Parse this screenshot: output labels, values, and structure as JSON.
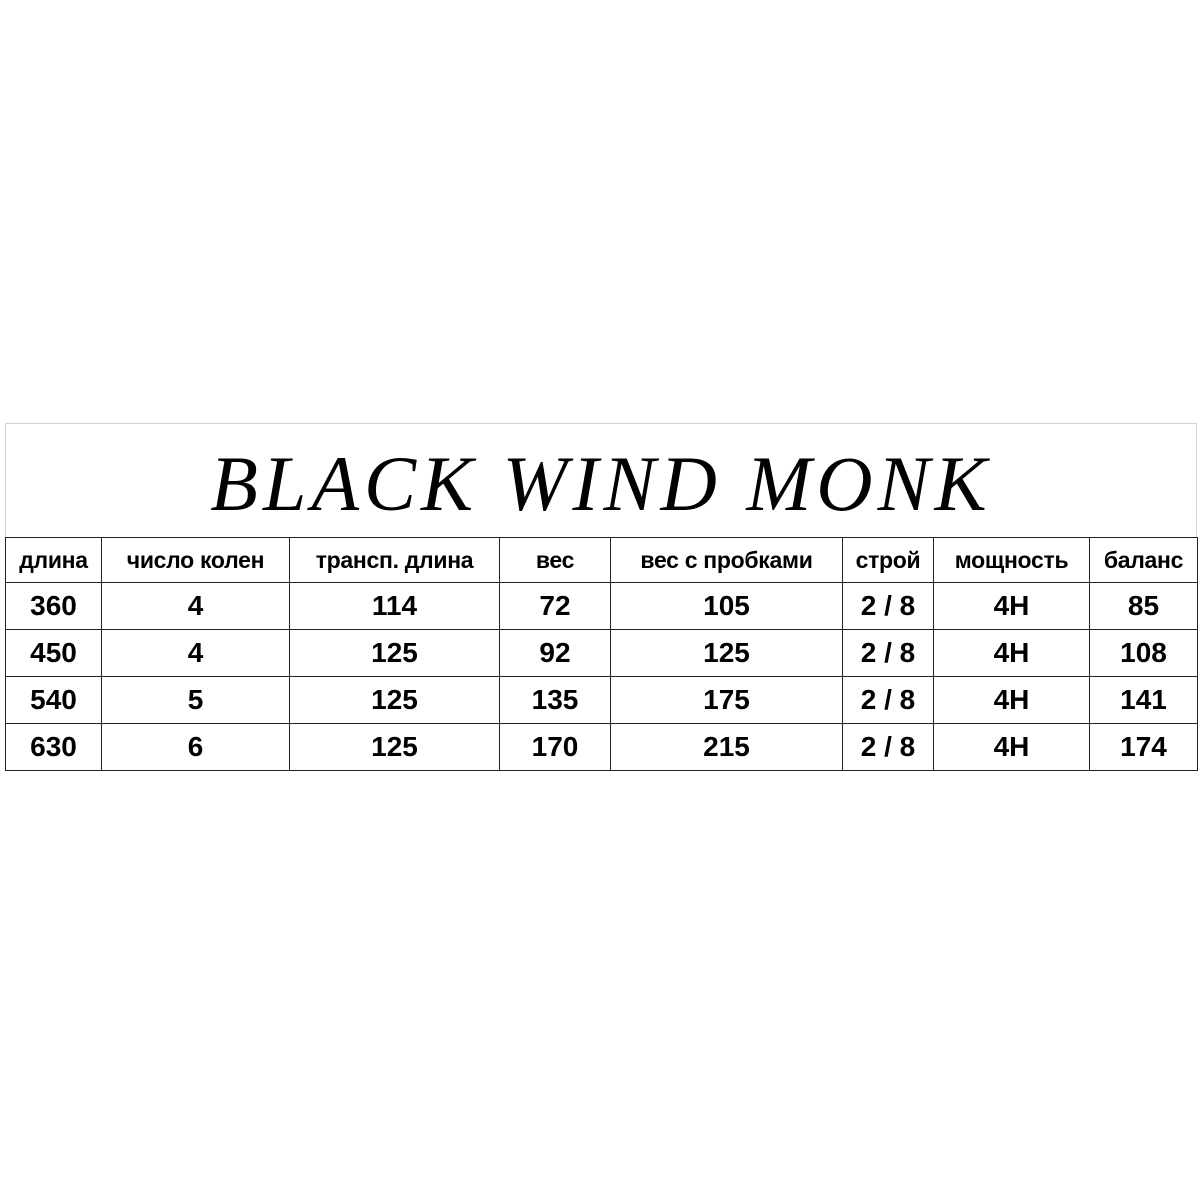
{
  "title": "BLACK WIND MONK",
  "table": {
    "headers": [
      "длина",
      "число колен",
      "трансп. длина",
      "вес",
      "вес с пробками",
      "строй",
      "мощность",
      "баланс"
    ],
    "rows": [
      [
        "360",
        "4",
        "114",
        "72",
        "105",
        "2 / 8",
        "4H",
        "85"
      ],
      [
        "450",
        "4",
        "125",
        "92",
        "125",
        "2 / 8",
        "4H",
        "108"
      ],
      [
        "540",
        "5",
        "125",
        "135",
        "175",
        "2 / 8",
        "4H",
        "141"
      ],
      [
        "630",
        "6",
        "125",
        "170",
        "215",
        "2 / 8",
        "4H",
        "174"
      ]
    ]
  }
}
